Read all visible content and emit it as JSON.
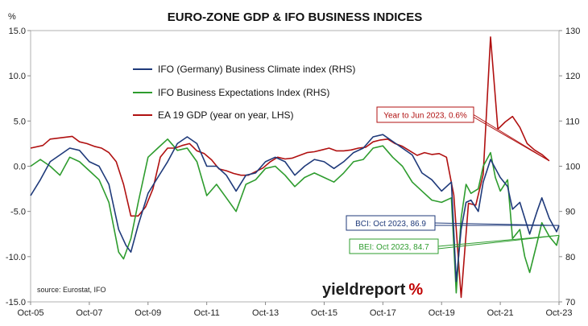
{
  "chart_data": {
    "type": "line",
    "title": "EURO-ZONE GDP & IFO BUSINESS INDICES",
    "left_axis": {
      "unit_label": "%",
      "range": [
        -15,
        15
      ],
      "ticks": [
        "15.0",
        "10.0",
        "5.0",
        "0.0",
        "-5.0",
        "-10.0",
        "-15.0"
      ],
      "tick_values": [
        15,
        10,
        5,
        0,
        -5,
        -10,
        -15
      ]
    },
    "right_axis": {
      "range": [
        70,
        130
      ],
      "ticks": [
        "130",
        "120",
        "110",
        "100",
        "90",
        "80",
        "70"
      ],
      "tick_values": [
        130,
        120,
        110,
        100,
        90,
        80,
        70
      ]
    },
    "x_axis": {
      "range": [
        "2005-10",
        "2023-10"
      ],
      "tick_labels": [
        "Oct-05",
        "Oct-07",
        "Oct-09",
        "Oct-11",
        "Oct-13",
        "Oct-15",
        "Oct-17",
        "Oct-19",
        "Oct-21",
        "Oct-23"
      ],
      "tick_values": [
        "2005-10",
        "2007-10",
        "2009-10",
        "2011-10",
        "2013-10",
        "2015-10",
        "2017-10",
        "2019-10",
        "2021-10",
        "2023-10"
      ]
    },
    "grid": "off",
    "legend_placement": "top-left",
    "series": [
      {
        "name": "IFO (Germany) Business Climate index (RHS)",
        "axis": "right",
        "color": "#1f3a7a",
        "points": [
          [
            "2005-10",
            93.5
          ],
          [
            "2006-02",
            97.0
          ],
          [
            "2006-06",
            101.0
          ],
          [
            "2006-10",
            102.5
          ],
          [
            "2007-02",
            104.0
          ],
          [
            "2007-06",
            103.5
          ],
          [
            "2007-10",
            101.0
          ],
          [
            "2008-02",
            100.0
          ],
          [
            "2008-06",
            96.0
          ],
          [
            "2008-10",
            86.0
          ],
          [
            "2009-01",
            82.5
          ],
          [
            "2009-03",
            81.0
          ],
          [
            "2009-06",
            87.0
          ],
          [
            "2009-10",
            94.0
          ],
          [
            "2010-02",
            97.5
          ],
          [
            "2010-06",
            101.0
          ],
          [
            "2010-10",
            105.0
          ],
          [
            "2011-02",
            106.5
          ],
          [
            "2011-06",
            105.0
          ],
          [
            "2011-10",
            100.0
          ],
          [
            "2012-02",
            100.0
          ],
          [
            "2012-06",
            98.0
          ],
          [
            "2012-10",
            94.5
          ],
          [
            "2013-02",
            98.0
          ],
          [
            "2013-06",
            98.5
          ],
          [
            "2013-10",
            101.0
          ],
          [
            "2014-02",
            102.0
          ],
          [
            "2014-06",
            101.0
          ],
          [
            "2014-10",
            98.0
          ],
          [
            "2015-02",
            100.0
          ],
          [
            "2015-06",
            101.5
          ],
          [
            "2015-10",
            101.0
          ],
          [
            "2016-02",
            99.5
          ],
          [
            "2016-06",
            101.0
          ],
          [
            "2016-10",
            103.0
          ],
          [
            "2017-02",
            104.0
          ],
          [
            "2017-06",
            106.5
          ],
          [
            "2017-10",
            107.0
          ],
          [
            "2018-02",
            105.5
          ],
          [
            "2018-06",
            104.0
          ],
          [
            "2018-10",
            102.5
          ],
          [
            "2019-02",
            98.5
          ],
          [
            "2019-06",
            97.0
          ],
          [
            "2019-10",
            94.5
          ],
          [
            "2020-02",
            96.5
          ],
          [
            "2020-04",
            74.5
          ],
          [
            "2020-06",
            86.0
          ],
          [
            "2020-08",
            92.0
          ],
          [
            "2020-10",
            92.5
          ],
          [
            "2021-01",
            90.0
          ],
          [
            "2021-03",
            96.5
          ],
          [
            "2021-06",
            101.5
          ],
          [
            "2021-08",
            99.5
          ],
          [
            "2021-10",
            97.5
          ],
          [
            "2022-01",
            95.5
          ],
          [
            "2022-03",
            90.5
          ],
          [
            "2022-06",
            92.0
          ],
          [
            "2022-08",
            88.5
          ],
          [
            "2022-10",
            85.0
          ],
          [
            "2023-01",
            90.0
          ],
          [
            "2023-03",
            93.0
          ],
          [
            "2023-06",
            88.5
          ],
          [
            "2023-09",
            85.5
          ],
          [
            "2023-10",
            86.9
          ]
        ]
      },
      {
        "name": "IFO Business Expectations Index (RHS)",
        "axis": "right",
        "color": "#2e9c2e",
        "points": [
          [
            "2005-10",
            100.0
          ],
          [
            "2006-02",
            101.5
          ],
          [
            "2006-06",
            100.0
          ],
          [
            "2006-10",
            98.0
          ],
          [
            "2007-02",
            102.0
          ],
          [
            "2007-06",
            101.0
          ],
          [
            "2007-10",
            99.0
          ],
          [
            "2008-02",
            97.0
          ],
          [
            "2008-06",
            92.0
          ],
          [
            "2008-10",
            81.0
          ],
          [
            "2008-12",
            79.5
          ],
          [
            "2009-03",
            84.0
          ],
          [
            "2009-06",
            92.0
          ],
          [
            "2009-10",
            102.0
          ],
          [
            "2010-02",
            104.0
          ],
          [
            "2010-06",
            106.0
          ],
          [
            "2010-10",
            103.5
          ],
          [
            "2011-02",
            104.0
          ],
          [
            "2011-06",
            101.0
          ],
          [
            "2011-10",
            93.5
          ],
          [
            "2012-02",
            96.0
          ],
          [
            "2012-06",
            93.0
          ],
          [
            "2012-10",
            90.0
          ],
          [
            "2013-02",
            96.0
          ],
          [
            "2013-06",
            97.0
          ],
          [
            "2013-10",
            99.5
          ],
          [
            "2014-02",
            100.0
          ],
          [
            "2014-06",
            98.0
          ],
          [
            "2014-10",
            95.5
          ],
          [
            "2015-02",
            97.5
          ],
          [
            "2015-06",
            98.5
          ],
          [
            "2015-10",
            97.5
          ],
          [
            "2016-02",
            96.5
          ],
          [
            "2016-06",
            98.5
          ],
          [
            "2016-10",
            101.0
          ],
          [
            "2017-02",
            101.5
          ],
          [
            "2017-06",
            104.0
          ],
          [
            "2017-10",
            104.5
          ],
          [
            "2018-02",
            102.0
          ],
          [
            "2018-06",
            100.0
          ],
          [
            "2018-10",
            96.5
          ],
          [
            "2019-02",
            94.5
          ],
          [
            "2019-06",
            92.5
          ],
          [
            "2019-10",
            92.0
          ],
          [
            "2020-02",
            93.0
          ],
          [
            "2020-04",
            72.0
          ],
          [
            "2020-06",
            88.5
          ],
          [
            "2020-08",
            96.0
          ],
          [
            "2020-10",
            94.0
          ],
          [
            "2021-01",
            95.0
          ],
          [
            "2021-03",
            100.0
          ],
          [
            "2021-06",
            103.0
          ],
          [
            "2021-08",
            97.5
          ],
          [
            "2021-10",
            94.5
          ],
          [
            "2022-01",
            97.0
          ],
          [
            "2022-03",
            84.0
          ],
          [
            "2022-06",
            86.0
          ],
          [
            "2022-08",
            80.0
          ],
          [
            "2022-10",
            76.5
          ],
          [
            "2023-01",
            83.0
          ],
          [
            "2023-03",
            87.5
          ],
          [
            "2023-06",
            84.5
          ],
          [
            "2023-09",
            82.5
          ],
          [
            "2023-10",
            84.7
          ]
        ]
      },
      {
        "name": "EA 19 GDP (year on year, LHS)",
        "axis": "left",
        "color": "#b01010",
        "points": [
          [
            "2005-10",
            2.0
          ],
          [
            "2006-03",
            2.3
          ],
          [
            "2006-06",
            3.0
          ],
          [
            "2006-12",
            3.2
          ],
          [
            "2007-03",
            3.3
          ],
          [
            "2007-06",
            2.7
          ],
          [
            "2007-09",
            2.5
          ],
          [
            "2007-12",
            2.2
          ],
          [
            "2008-03",
            2.0
          ],
          [
            "2008-06",
            1.5
          ],
          [
            "2008-09",
            0.5
          ],
          [
            "2008-12",
            -2.0
          ],
          [
            "2009-03",
            -5.5
          ],
          [
            "2009-06",
            -5.5
          ],
          [
            "2009-09",
            -4.5
          ],
          [
            "2009-12",
            -2.5
          ],
          [
            "2010-03",
            1.0
          ],
          [
            "2010-06",
            2.0
          ],
          [
            "2010-09",
            2.0
          ],
          [
            "2010-12",
            2.3
          ],
          [
            "2011-03",
            2.5
          ],
          [
            "2011-06",
            1.7
          ],
          [
            "2011-09",
            1.4
          ],
          [
            "2011-12",
            0.7
          ],
          [
            "2012-03",
            -0.3
          ],
          [
            "2012-06",
            -0.5
          ],
          [
            "2012-09",
            -0.8
          ],
          [
            "2012-12",
            -1.0
          ],
          [
            "2013-03",
            -1.0
          ],
          [
            "2013-06",
            -0.6
          ],
          [
            "2013-09",
            -0.2
          ],
          [
            "2013-12",
            0.5
          ],
          [
            "2014-03",
            1.0
          ],
          [
            "2014-06",
            0.8
          ],
          [
            "2014-09",
            0.9
          ],
          [
            "2014-12",
            1.2
          ],
          [
            "2015-03",
            1.5
          ],
          [
            "2015-06",
            1.6
          ],
          [
            "2015-09",
            1.8
          ],
          [
            "2015-12",
            2.0
          ],
          [
            "2016-03",
            1.7
          ],
          [
            "2016-06",
            1.7
          ],
          [
            "2016-09",
            1.8
          ],
          [
            "2016-12",
            2.0
          ],
          [
            "2017-03",
            2.1
          ],
          [
            "2017-06",
            2.7
          ],
          [
            "2017-09",
            2.9
          ],
          [
            "2017-12",
            3.0
          ],
          [
            "2018-03",
            2.5
          ],
          [
            "2018-06",
            2.2
          ],
          [
            "2018-09",
            1.7
          ],
          [
            "2018-12",
            1.2
          ],
          [
            "2019-03",
            1.5
          ],
          [
            "2019-06",
            1.3
          ],
          [
            "2019-09",
            1.4
          ],
          [
            "2019-12",
            1.0
          ],
          [
            "2020-03",
            -3.2
          ],
          [
            "2020-06",
            -14.5
          ],
          [
            "2020-09",
            -4.1
          ],
          [
            "2020-12",
            -4.3
          ],
          [
            "2021-03",
            -0.9
          ],
          [
            "2021-06",
            14.3
          ],
          [
            "2021-09",
            4.1
          ],
          [
            "2021-12",
            4.9
          ],
          [
            "2022-03",
            5.5
          ],
          [
            "2022-06",
            4.3
          ],
          [
            "2022-09",
            2.5
          ],
          [
            "2022-12",
            1.8
          ],
          [
            "2023-03",
            1.3
          ],
          [
            "2023-06",
            0.6
          ]
        ]
      }
    ],
    "annotations": [
      {
        "text": "Year to Jun 2023, 0.6%",
        "series": "EA 19 GDP (year on year, LHS)",
        "color": "#b01010"
      },
      {
        "text": "BCI: Oct 2023, 86.9",
        "series": "IFO (Germany) Business Climate index (RHS)",
        "color": "#1f3a7a"
      },
      {
        "text": "BEI: Oct 2023, 84.7",
        "series": "IFO Business Expectations Index (RHS)",
        "color": "#2e9c2e"
      }
    ],
    "source": "source: Eurostat, IFO"
  },
  "branding": {
    "logo_text": "yieldreport",
    "logo_symbol": "%",
    "logo_symbol_color": "#c00000"
  }
}
